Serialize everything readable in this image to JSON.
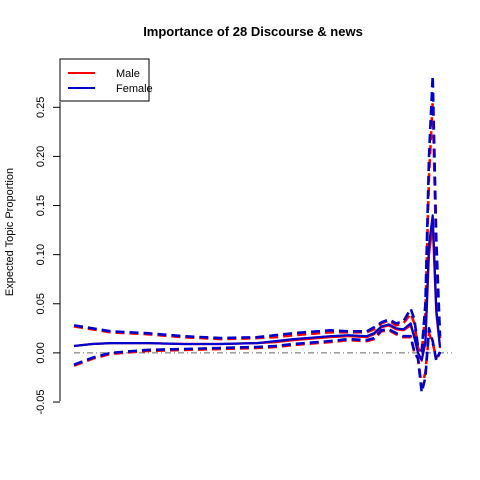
{
  "chart_data": {
    "type": "line",
    "title": "Importance of 28 Discourse & news",
    "xlabel": "",
    "ylabel": "Expected Topic Proportion",
    "ylim": [
      -0.05,
      0.29
    ],
    "xlim": [
      0,
      1
    ],
    "x_axis_drawn": false,
    "grid": false,
    "legend": {
      "placement": "top-left",
      "entries": [
        "Male",
        "Female"
      ]
    },
    "y_ticks": [
      {
        "value": -0.05,
        "label": "-0.05"
      },
      {
        "value": 0.0,
        "label": "0.00"
      },
      {
        "value": 0.05,
        "label": "0.05"
      },
      {
        "value": 0.1,
        "label": "0.10"
      },
      {
        "value": 0.15,
        "label": "0.15"
      },
      {
        "value": 0.2,
        "label": "0.20"
      },
      {
        "value": 0.25,
        "label": "0.25"
      }
    ],
    "reference_line": {
      "y": 0,
      "style": "dash-dot",
      "color": "#666666"
    },
    "series": [
      {
        "name": "Male",
        "color": "#ff0000",
        "x": [
          0.0,
          0.05,
          0.1,
          0.2,
          0.3,
          0.4,
          0.5,
          0.55,
          0.6,
          0.7,
          0.75,
          0.8,
          0.82,
          0.84,
          0.86,
          0.88,
          0.9,
          0.92,
          0.93,
          0.94,
          0.95,
          0.96,
          0.97,
          0.98,
          0.99,
          1.0
        ],
        "mean": [
          0.007,
          0.009,
          0.01,
          0.01,
          0.009,
          0.009,
          0.01,
          0.011,
          0.013,
          0.016,
          0.017,
          0.016,
          0.019,
          0.026,
          0.028,
          0.024,
          0.023,
          0.028,
          0.015,
          0.0,
          -0.008,
          0.01,
          0.1,
          0.13,
          0.04,
          0.005
        ],
        "upper": [
          0.027,
          0.024,
          0.021,
          0.019,
          0.016,
          0.014,
          0.015,
          0.016,
          0.018,
          0.021,
          0.021,
          0.021,
          0.024,
          0.03,
          0.033,
          0.028,
          0.03,
          0.04,
          0.03,
          0.005,
          0.0,
          0.04,
          0.18,
          0.255,
          0.1,
          0.015
        ],
        "lower": [
          -0.013,
          -0.006,
          -0.001,
          0.002,
          0.003,
          0.004,
          0.005,
          0.006,
          0.008,
          0.011,
          0.013,
          0.012,
          0.014,
          0.022,
          0.023,
          0.019,
          0.016,
          0.016,
          0.0,
          -0.005,
          -0.035,
          -0.02,
          0.02,
          0.01,
          -0.005,
          0.0
        ]
      },
      {
        "name": "Female",
        "color": "#0000cc",
        "x": [
          0.0,
          0.05,
          0.1,
          0.2,
          0.3,
          0.4,
          0.5,
          0.55,
          0.6,
          0.7,
          0.75,
          0.8,
          0.82,
          0.84,
          0.86,
          0.88,
          0.9,
          0.92,
          0.93,
          0.94,
          0.95,
          0.96,
          0.97,
          0.98,
          0.99,
          1.0
        ],
        "mean": [
          0.007,
          0.009,
          0.01,
          0.01,
          0.009,
          0.009,
          0.01,
          0.012,
          0.014,
          0.017,
          0.018,
          0.017,
          0.02,
          0.027,
          0.029,
          0.025,
          0.024,
          0.03,
          0.016,
          0.0,
          -0.007,
          0.012,
          0.11,
          0.14,
          0.045,
          0.006
        ],
        "upper": [
          0.028,
          0.025,
          0.022,
          0.02,
          0.017,
          0.015,
          0.016,
          0.018,
          0.02,
          0.023,
          0.022,
          0.022,
          0.026,
          0.031,
          0.034,
          0.03,
          0.032,
          0.045,
          0.034,
          0.006,
          0.002,
          0.05,
          0.2,
          0.282,
          0.115,
          0.017
        ],
        "lower": [
          -0.012,
          -0.005,
          0.0,
          0.003,
          0.004,
          0.005,
          0.006,
          0.007,
          0.009,
          0.012,
          0.014,
          0.013,
          0.015,
          0.023,
          0.024,
          0.02,
          0.017,
          0.017,
          0.001,
          -0.006,
          -0.04,
          -0.025,
          0.025,
          0.012,
          -0.008,
          0.001
        ]
      }
    ]
  }
}
